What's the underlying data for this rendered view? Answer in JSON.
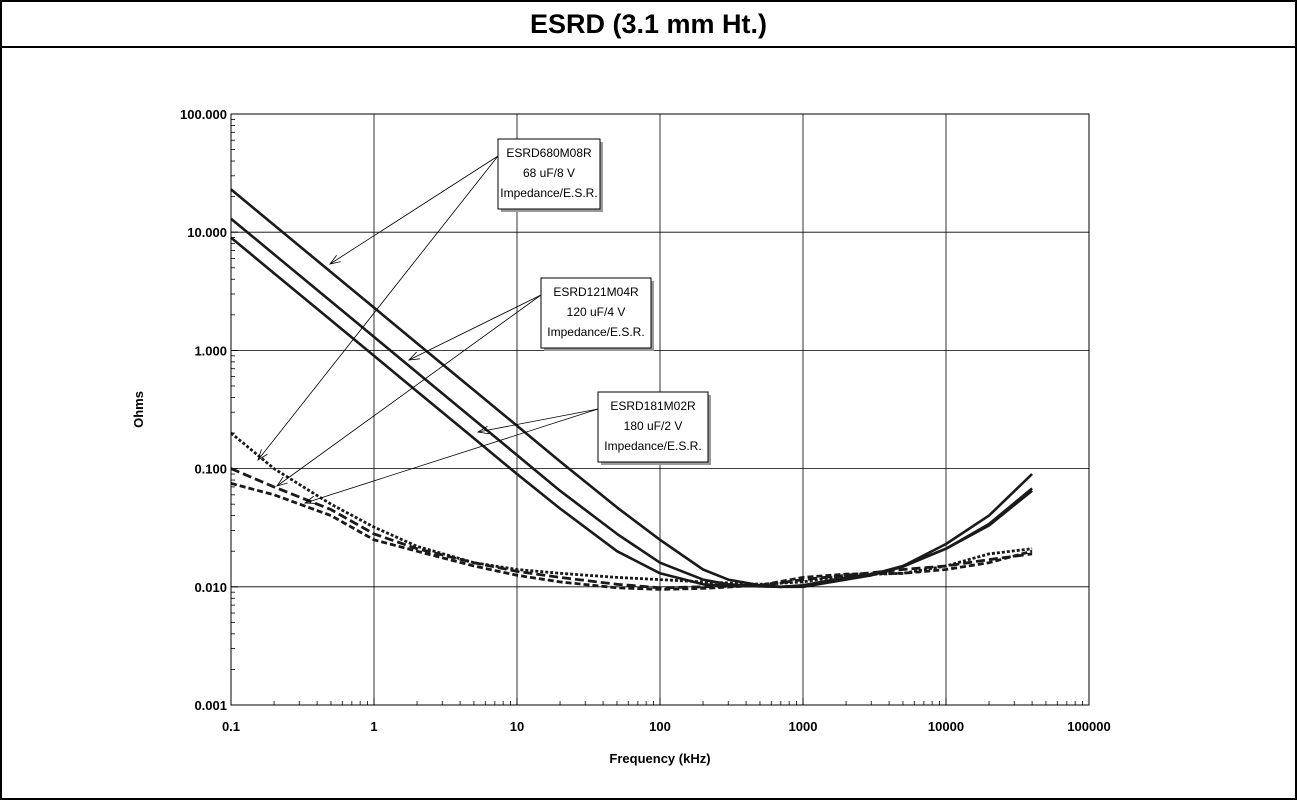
{
  "chart_data": {
    "type": "line",
    "title": "ESRD (3.1 mm Ht.)",
    "xlabel": "Frequency (kHz)",
    "ylabel": "Ohms",
    "x_scale": "log",
    "y_scale": "log",
    "xlim": [
      0.1,
      100000
    ],
    "ylim": [
      0.001,
      100
    ],
    "x_ticks": [
      "0.1",
      "1",
      "10",
      "100",
      "1000",
      "10000",
      "100000"
    ],
    "y_ticks": [
      "0.001",
      "0.010",
      "0.100",
      "1.000",
      "10.000",
      "100.000"
    ],
    "grid": true,
    "annotations": [
      {
        "lines": [
          "ESRD680M08R",
          "68 uF/8 V",
          "Impedance/E.S.R."
        ]
      },
      {
        "lines": [
          "ESRD121M04R",
          "120 uF/4 V",
          "Impedance/E.S.R."
        ]
      },
      {
        "lines": [
          "ESRD181M02R",
          "180 uF/2 V",
          "Impedance/E.S.R."
        ]
      }
    ],
    "series": [
      {
        "x": [
          0.1,
          0.2,
          0.5,
          1,
          2,
          5,
          10,
          20,
          50,
          100,
          200,
          300,
          500,
          700,
          1000,
          2000,
          3000,
          5000,
          10000,
          20000,
          40000
        ],
        "y": [
          23,
          11.5,
          4.6,
          2.3,
          1.15,
          0.46,
          0.23,
          0.115,
          0.047,
          0.025,
          0.014,
          0.0115,
          0.0103,
          0.01,
          0.01,
          0.0115,
          0.0125,
          0.015,
          0.023,
          0.04,
          0.09
        ]
      },
      {
        "x": [
          0.1,
          0.2,
          0.5,
          1,
          2,
          5,
          10,
          20,
          50,
          100,
          200,
          300,
          500,
          700,
          1000,
          2000,
          3000,
          5000,
          10000,
          20000,
          40000
        ],
        "y": [
          13,
          6.5,
          2.6,
          1.3,
          0.65,
          0.26,
          0.13,
          0.065,
          0.028,
          0.016,
          0.0115,
          0.0105,
          0.0101,
          0.01,
          0.0102,
          0.0118,
          0.0125,
          0.0148,
          0.021,
          0.033,
          0.065
        ]
      },
      {
        "x": [
          0.1,
          0.2,
          0.5,
          1,
          2,
          5,
          10,
          20,
          50,
          100,
          200,
          300,
          500,
          700,
          1000,
          2000,
          3000,
          5000,
          10000,
          20000,
          40000
        ],
        "y": [
          9,
          4.5,
          1.8,
          0.9,
          0.45,
          0.18,
          0.09,
          0.046,
          0.02,
          0.013,
          0.0105,
          0.0102,
          0.0101,
          0.01,
          0.0103,
          0.012,
          0.0127,
          0.015,
          0.021,
          0.034,
          0.068
        ]
      },
      {
        "x": [
          0.1,
          0.2,
          0.5,
          1,
          2,
          5,
          10,
          20,
          50,
          100,
          200,
          500,
          1000,
          2000,
          5000,
          10000,
          20000,
          40000
        ],
        "y": [
          0.2,
          0.1,
          0.05,
          0.032,
          0.022,
          0.016,
          0.014,
          0.013,
          0.012,
          0.0115,
          0.011,
          0.0105,
          0.011,
          0.0125,
          0.013,
          0.015,
          0.019,
          0.021
        ]
      },
      {
        "x": [
          0.1,
          0.2,
          0.5,
          1,
          2,
          5,
          10,
          20,
          50,
          100,
          200,
          500,
          1000,
          2000,
          5000,
          10000,
          20000,
          40000
        ],
        "y": [
          0.1,
          0.07,
          0.045,
          0.028,
          0.021,
          0.016,
          0.0135,
          0.012,
          0.0105,
          0.0098,
          0.01,
          0.0102,
          0.0115,
          0.0125,
          0.014,
          0.015,
          0.017,
          0.019
        ]
      },
      {
        "x": [
          0.1,
          0.2,
          0.5,
          1,
          2,
          5,
          10,
          20,
          50,
          100,
          200,
          500,
          1000,
          2000,
          5000,
          10000,
          20000,
          40000
        ],
        "y": [
          0.075,
          0.06,
          0.04,
          0.025,
          0.02,
          0.015,
          0.0125,
          0.011,
          0.0098,
          0.0095,
          0.0097,
          0.0103,
          0.012,
          0.0128,
          0.013,
          0.014,
          0.016,
          0.02
        ]
      }
    ]
  }
}
